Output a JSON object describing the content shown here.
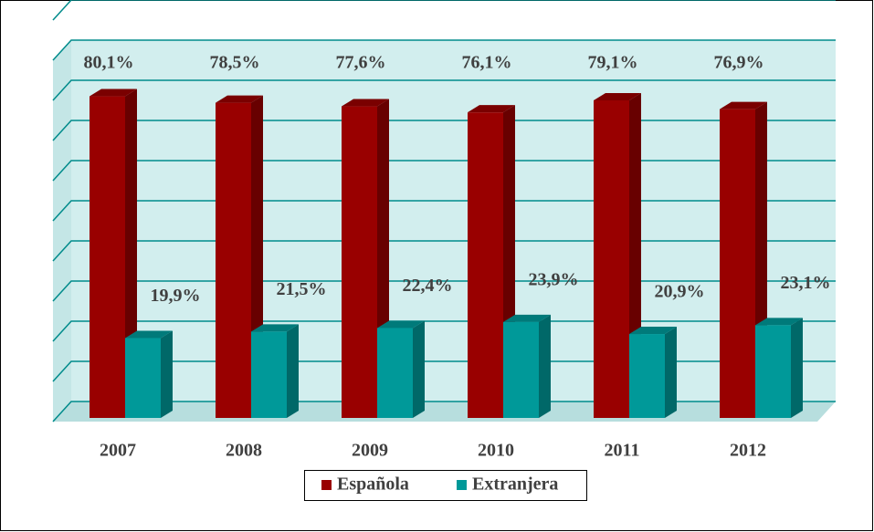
{
  "chart_data": {
    "type": "bar3d",
    "categories": [
      "2007",
      "2008",
      "2009",
      "2010",
      "2011",
      "2012"
    ],
    "series": [
      {
        "name": "Española",
        "color": "#990000",
        "values": [
          80.1,
          78.5,
          77.6,
          76.1,
          79.1,
          76.9
        ],
        "value_labels": [
          "80,1%",
          "78,5%",
          "77,6%",
          "76,1%",
          "79,1%",
          "76,9%"
        ]
      },
      {
        "name": "Extranjera",
        "color": "#009999",
        "values": [
          19.9,
          21.5,
          22.4,
          23.9,
          20.9,
          23.1
        ],
        "value_labels": [
          "19,9%",
          "21,5%",
          "22,4%",
          "23,9%",
          "20,9%",
          "23,1%"
        ]
      }
    ],
    "ylim": [
      0,
      100
    ],
    "yticks": [
      0,
      10,
      20,
      30,
      40,
      50,
      60,
      70,
      80,
      90,
      100
    ],
    "grid": true
  }
}
